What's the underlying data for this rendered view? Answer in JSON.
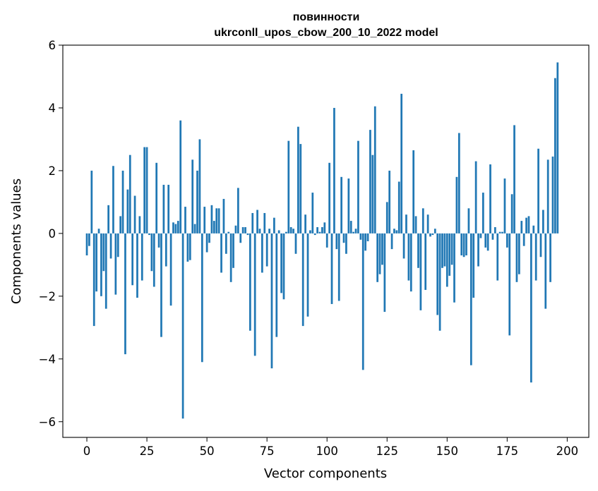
{
  "chart_data": {
    "type": "bar",
    "title_line1": "повинности",
    "title_line2": "ukrconll_upos_cbow_200_10_2022 model",
    "xlabel": "Vector components",
    "ylabel": "Components values",
    "xlim": [
      -10,
      209
    ],
    "ylim": [
      -6.5,
      6.0
    ],
    "x_ticks": [
      0,
      25,
      50,
      75,
      100,
      125,
      150,
      175,
      200
    ],
    "y_ticks": [
      -6,
      -4,
      -2,
      0,
      2,
      4,
      6
    ],
    "y_tick_labels": [
      "−6",
      "−4",
      "−2",
      "0",
      "2",
      "4",
      "6"
    ],
    "grid": false,
    "bar_color": "#1f77b4",
    "values": [
      -0.7,
      -0.4,
      2.0,
      -2.95,
      -1.85,
      0.15,
      -2.0,
      -1.2,
      -2.4,
      0.9,
      -0.8,
      2.15,
      -1.95,
      -0.75,
      0.55,
      2.0,
      -3.85,
      1.4,
      2.5,
      -1.65,
      1.2,
      -2.05,
      0.55,
      -1.5,
      2.75,
      2.75,
      -0.05,
      -1.2,
      -1.7,
      2.25,
      -0.45,
      -3.3,
      1.55,
      -1.05,
      1.55,
      -2.3,
      0.35,
      0.3,
      0.4,
      3.6,
      -5.9,
      0.85,
      -0.9,
      -0.85,
      2.35,
      0.3,
      2.0,
      3.0,
      -4.1,
      0.85,
      -0.6,
      -0.3,
      0.9,
      0.4,
      0.8,
      0.8,
      -1.25,
      1.1,
      -0.65,
      0.05,
      -1.55,
      -1.1,
      0.25,
      1.45,
      -0.3,
      0.2,
      0.2,
      -0.05,
      -3.1,
      0.65,
      -3.9,
      0.75,
      0.15,
      -1.25,
      0.65,
      -1.05,
      0.15,
      -4.3,
      0.5,
      -3.3,
      0.1,
      -1.9,
      -2.1,
      0.05,
      2.95,
      0.2,
      0.15,
      -0.65,
      3.4,
      2.85,
      -2.95,
      0.6,
      -2.65,
      0.1,
      1.3,
      -0.05,
      0.2,
      0.05,
      0.2,
      0.35,
      -0.45,
      2.25,
      -2.25,
      4.0,
      -0.5,
      -2.15,
      1.8,
      -0.3,
      -0.65,
      1.75,
      0.4,
      0.05,
      0.15,
      2.95,
      -0.2,
      -4.35,
      -0.55,
      -0.25,
      3.3,
      2.5,
      4.05,
      -1.55,
      -1.3,
      -1.0,
      -2.5,
      1.0,
      2.0,
      -0.5,
      0.15,
      0.1,
      1.65,
      4.45,
      -0.8,
      0.6,
      -1.5,
      -1.85,
      2.65,
      0.55,
      -1.1,
      -2.45,
      0.8,
      -1.8,
      0.6,
      -0.1,
      -0.05,
      0.15,
      -2.6,
      -3.1,
      -1.1,
      -1.05,
      -1.7,
      -1.35,
      -1.0,
      -2.2,
      1.8,
      3.2,
      -0.7,
      -0.75,
      -0.7,
      0.8,
      -4.2,
      -2.05,
      2.3,
      -1.05,
      -0.15,
      1.3,
      -0.45,
      -0.55,
      2.2,
      -0.2,
      0.2,
      -1.5,
      0.05,
      0.05,
      1.75,
      -0.45,
      -3.25,
      1.25,
      3.45,
      -1.55,
      -1.3,
      0.4,
      -0.4,
      0.5,
      0.55,
      -4.75,
      0.25,
      -1.5,
      2.7,
      -0.75,
      0.75,
      -2.4,
      2.35,
      -1.55,
      2.45,
      4.95,
      5.45
    ]
  }
}
